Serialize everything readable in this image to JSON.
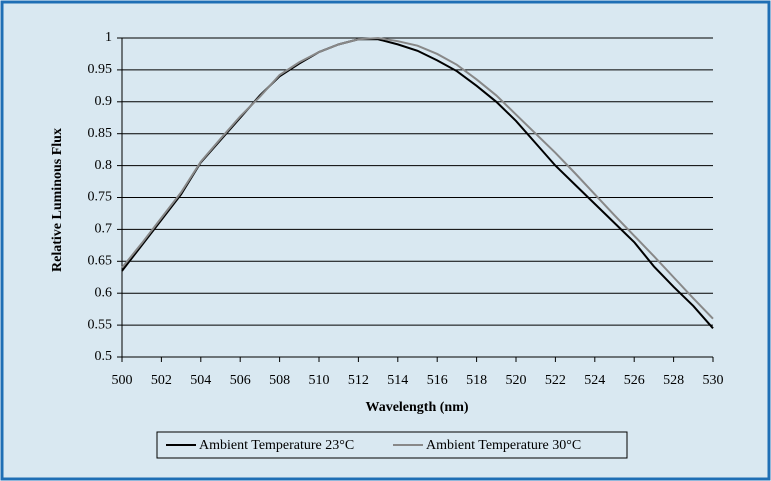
{
  "chart_data": {
    "type": "line",
    "y_label": "Relative Luminous Flux",
    "x_label": "Wavelength (nm)",
    "x": [
      500,
      501,
      502,
      503,
      504,
      505,
      506,
      507,
      508,
      509,
      510,
      511,
      512,
      513,
      514,
      515,
      516,
      517,
      518,
      519,
      520,
      521,
      522,
      523,
      524,
      525,
      526,
      527,
      528,
      529,
      530
    ],
    "series": [
      {
        "name": "Ambient Temperature 23°C",
        "color": "#000000",
        "values": [
          0.635,
          0.675,
          0.715,
          0.755,
          0.805,
          0.84,
          0.875,
          0.91,
          0.94,
          0.96,
          0.978,
          0.99,
          0.998,
          0.998,
          0.99,
          0.98,
          0.965,
          0.948,
          0.925,
          0.9,
          0.87,
          0.835,
          0.8,
          0.77,
          0.74,
          0.71,
          0.68,
          0.642,
          0.61,
          0.58,
          0.545
        ]
      },
      {
        "name": "Ambient Temperature 30°C",
        "color": "#888888",
        "values": [
          0.64,
          0.678,
          0.718,
          0.758,
          0.806,
          0.842,
          0.877,
          0.908,
          0.942,
          0.962,
          0.978,
          0.99,
          0.998,
          1,
          0.995,
          0.988,
          0.975,
          0.958,
          0.935,
          0.91,
          0.88,
          0.85,
          0.82,
          0.788,
          0.755,
          0.722,
          0.69,
          0.658,
          0.625,
          0.592,
          0.56
        ]
      }
    ],
    "xlim": [
      500,
      530
    ],
    "xticks": [
      500,
      502,
      504,
      506,
      508,
      510,
      512,
      514,
      516,
      518,
      520,
      522,
      524,
      526,
      528,
      530
    ],
    "ylim": [
      0.5,
      1
    ],
    "yticks": [
      0.5,
      0.55,
      0.6,
      0.65,
      0.7,
      0.75,
      0.8,
      0.85,
      0.9,
      0.95,
      1
    ],
    "grid": true,
    "legend": "bottom"
  }
}
